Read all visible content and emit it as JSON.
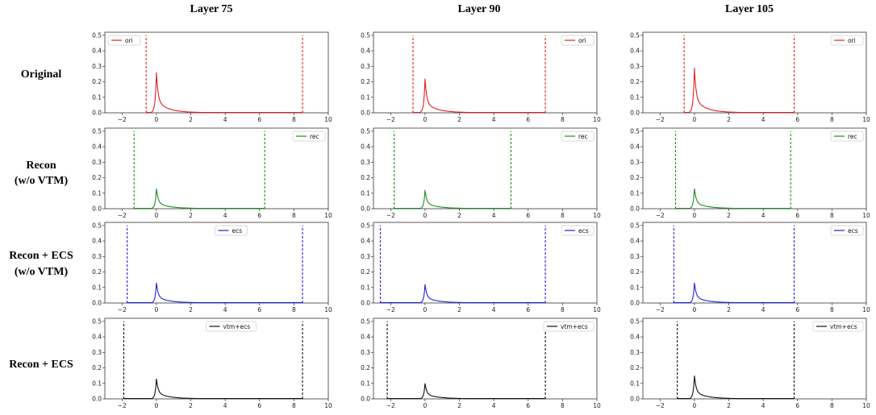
{
  "column_titles": [
    "Layer 75",
    "Layer 90",
    "Layer 105"
  ],
  "row_titles": [
    [
      "Original"
    ],
    [
      "Recon",
      "(w/o VTM)"
    ],
    [
      "Recon + ECS",
      "(w/o VTM)"
    ],
    [
      "Recon + ECS"
    ]
  ],
  "colors": {
    "ori": "#e02020",
    "rec": "#1e8c1e",
    "ecs": "#2020d8",
    "vtm+ecs": "#111111"
  },
  "chart_data": {
    "type": "line",
    "description_axes": "shared axes for all 12 subplots",
    "xlim": [
      -3,
      10
    ],
    "ylim": [
      0,
      0.52
    ],
    "xticks": [
      -2,
      0,
      2,
      4,
      6,
      8,
      10
    ],
    "yticks": [
      0.0,
      0.1,
      0.2,
      0.3,
      0.4,
      0.5
    ],
    "xtick_labels": [
      "−2",
      "0",
      "2",
      "4",
      "6",
      "8",
      "10"
    ],
    "ytick_labels": [
      "0.0",
      "0.1",
      "0.2",
      "0.3",
      "0.4",
      "0.5"
    ],
    "panels": [
      {
        "row": 0,
        "col": 0,
        "label": "ori",
        "legend": "top-left",
        "min": -0.6,
        "max": 8.5,
        "peak": 0.26
      },
      {
        "row": 0,
        "col": 1,
        "label": "ori",
        "legend": "top-right",
        "min": -0.7,
        "max": 7.0,
        "peak": 0.22
      },
      {
        "row": 0,
        "col": 2,
        "label": "ori",
        "legend": "top-right",
        "min": -0.6,
        "max": 5.8,
        "peak": 0.29
      },
      {
        "row": 1,
        "col": 0,
        "label": "rec",
        "legend": "top-right",
        "min": -1.3,
        "max": 6.3,
        "peak": 0.13
      },
      {
        "row": 1,
        "col": 1,
        "label": "rec",
        "legend": "top-right",
        "min": -1.8,
        "max": 5.0,
        "peak": 0.12
      },
      {
        "row": 1,
        "col": 2,
        "label": "rec",
        "legend": "top-right",
        "min": -1.1,
        "max": 5.6,
        "peak": 0.13
      },
      {
        "row": 2,
        "col": 0,
        "label": "ecs",
        "legend": "top-center",
        "min": -1.7,
        "max": 8.5,
        "peak": 0.13
      },
      {
        "row": 2,
        "col": 1,
        "label": "ecs",
        "legend": "top-right",
        "min": -2.6,
        "max": 7.0,
        "peak": 0.12
      },
      {
        "row": 2,
        "col": 2,
        "label": "ecs",
        "legend": "top-right",
        "min": -1.2,
        "max": 5.8,
        "peak": 0.13
      },
      {
        "row": 3,
        "col": 0,
        "label": "vtm+ecs",
        "legend": "top-center",
        "min": -1.9,
        "max": 8.5,
        "peak": 0.13
      },
      {
        "row": 3,
        "col": 1,
        "label": "vtm+ecs",
        "legend": "top-right",
        "min": -2.2,
        "max": 7.0,
        "peak": 0.1
      },
      {
        "row": 3,
        "col": 2,
        "label": "vtm+ecs",
        "legend": "top-right",
        "min": -1.0,
        "max": 5.8,
        "peak": 0.15
      }
    ]
  }
}
